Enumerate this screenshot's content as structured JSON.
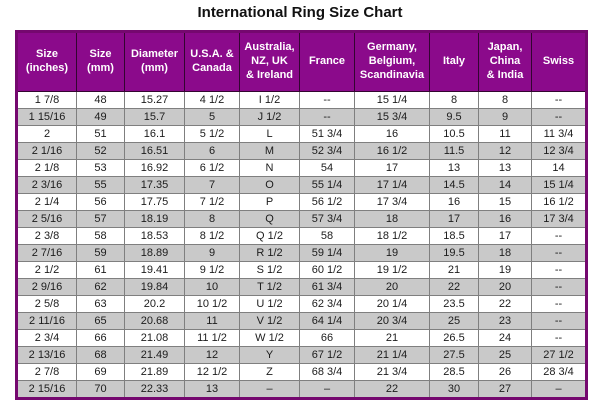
{
  "page": {
    "title": "International Ring Size Chart"
  },
  "colors": {
    "header_bg": "#8B0A8B",
    "header_text": "#FFFFFF",
    "stripe": "#C9C9C9",
    "border_outer": "#75086F",
    "grid": "#7F7F7F"
  },
  "chart_data": {
    "type": "table",
    "title": "International Ring Size Chart",
    "grid": true,
    "header_style": "purple background, white bold text",
    "row_striping": "white / light gray alternating",
    "columns": [
      "Size\n(inches)",
      "Size\n(mm)",
      "Diameter\n(mm)",
      "U.S.A. &\nCanada",
      "Australia,\nNZ, UK\n& Ireland",
      "France",
      "Germany,\nBelgium,\nScandinavia",
      "Italy",
      "Japan,\nChina\n& India",
      "Swiss"
    ],
    "rows": [
      [
        "1 7/8",
        "48",
        "15.27",
        "4 1/2",
        "I 1/2",
        "--",
        "15 1/4",
        "8",
        "8",
        "--"
      ],
      [
        "1 15/16",
        "49",
        "15.7",
        "5",
        "J 1/2",
        "--",
        "15 3/4",
        "9.5",
        "9",
        "--"
      ],
      [
        "2",
        "51",
        "16.1",
        "5 1/2",
        "L",
        "51 3/4",
        "16",
        "10.5",
        "11",
        "11 3/4"
      ],
      [
        "2 1/16",
        "52",
        "16.51",
        "6",
        "M",
        "52 3/4",
        "16 1/2",
        "11.5",
        "12",
        "12 3/4"
      ],
      [
        "2 1/8",
        "53",
        "16.92",
        "6 1/2",
        "N",
        "54",
        "17",
        "13",
        "13",
        "14"
      ],
      [
        "2 3/16",
        "55",
        "17.35",
        "7",
        "O",
        "55 1/4",
        "17 1/4",
        "14.5",
        "14",
        "15 1/4"
      ],
      [
        "2 1/4",
        "56",
        "17.75",
        "7 1/2",
        "P",
        "56 1/2",
        "17 3/4",
        "16",
        "15",
        "16 1/2"
      ],
      [
        "2 5/16",
        "57",
        "18.19",
        "8",
        "Q",
        "57 3/4",
        "18",
        "17",
        "16",
        "17 3/4"
      ],
      [
        "2 3/8",
        "58",
        "18.53",
        "8 1/2",
        "Q 1/2",
        "58",
        "18 1/2",
        "18.5",
        "17",
        "--"
      ],
      [
        "2 7/16",
        "59",
        "18.89",
        "9",
        "R 1/2",
        "59 1/4",
        "19",
        "19.5",
        "18",
        "--"
      ],
      [
        "2 1/2",
        "61",
        "19.41",
        "9 1/2",
        "S 1/2",
        "60 1/2",
        "19 1/2",
        "21",
        "19",
        "--"
      ],
      [
        "2 9/16",
        "62",
        "19.84",
        "10",
        "T 1/2",
        "61 3/4",
        "20",
        "22",
        "20",
        "--"
      ],
      [
        "2 5/8",
        "63",
        "20.2",
        "10 1/2",
        "U 1/2",
        "62 3/4",
        "20 1/4",
        "23.5",
        "22",
        "--"
      ],
      [
        "2 11/16",
        "65",
        "20.68",
        "11",
        "V 1/2",
        "64 1/4",
        "20 3/4",
        "25",
        "23",
        "--"
      ],
      [
        "2 3/4",
        "66",
        "21.08",
        "11 1/2",
        "W 1/2",
        "66",
        "21",
        "26.5",
        "24",
        "--"
      ],
      [
        "2 13/16",
        "68",
        "21.49",
        "12",
        "Y",
        "67 1/2",
        "21 1/4",
        "27.5",
        "25",
        "27 1/2"
      ],
      [
        "2 7/8",
        "69",
        "21.89",
        "12 1/2",
        "Z",
        "68 3/4",
        "21 3/4",
        "28.5",
        "26",
        "28 3/4"
      ],
      [
        "2 15/16",
        "70",
        "22.33",
        "13",
        "–",
        "–",
        "22",
        "30",
        "27",
        "–"
      ]
    ]
  }
}
